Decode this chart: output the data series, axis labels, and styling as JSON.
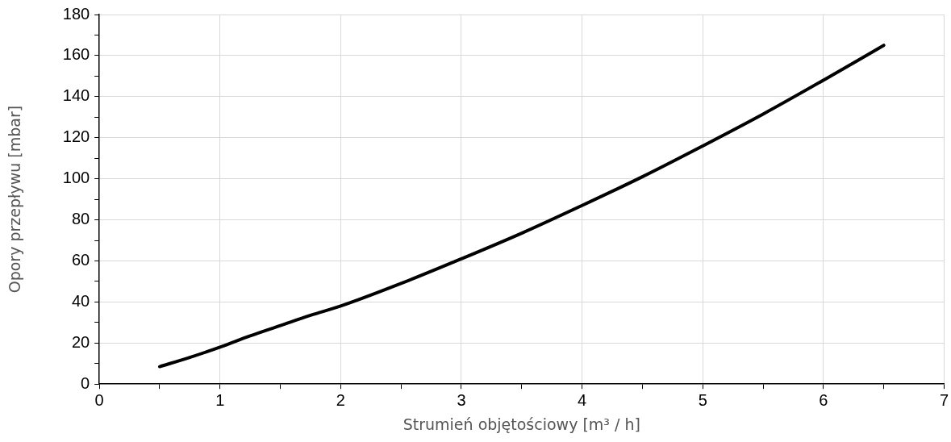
{
  "chart_data": {
    "type": "line",
    "xlabel": "Strumień objętościowy [m³ / h]",
    "ylabel": "Opory przepływu [mbar]",
    "x": [
      0.5,
      0.75,
      1,
      1.25,
      1.5,
      1.75,
      2,
      2.5,
      3,
      3.5,
      4,
      4.5,
      5,
      5.5,
      6,
      6.5
    ],
    "series": [
      {
        "color": "#000000",
        "values": [
          8.5,
          13,
          18,
          23.5,
          28.5,
          33.5,
          38,
          49,
          61,
          73.5,
          87,
          101,
          116,
          131.5,
          148,
          165
        ]
      }
    ],
    "xlim": [
      0,
      7
    ],
    "xticks": [
      0,
      {
        "value": 0.5,
        "label": null
      },
      1,
      {
        "value": 1.5,
        "label": null
      },
      2,
      {
        "value": 2.5,
        "label": null
      },
      3,
      {
        "value": 3.5,
        "label": null
      },
      4,
      {
        "value": 4.5,
        "label": null
      },
      5,
      {
        "value": 5.5,
        "label": null
      },
      6,
      {
        "value": 6.5,
        "label": null
      },
      7
    ],
    "ylim": [
      0,
      180
    ],
    "yticks": [
      0,
      {
        "value": 10,
        "label": null
      },
      20,
      {
        "value": 30,
        "label": null
      },
      40,
      {
        "value": 50,
        "label": null
      },
      60,
      {
        "value": 70,
        "label": null
      },
      80,
      {
        "value": 90,
        "label": null
      },
      100,
      {
        "value": 110,
        "label": null
      },
      120,
      {
        "value": 130,
        "label": null
      },
      140,
      {
        "value": 150,
        "label": null
      },
      160,
      {
        "value": 170,
        "label": null
      },
      180
    ],
    "grid": true,
    "legend": false,
    "marker": "none",
    "line_style": "solid"
  }
}
